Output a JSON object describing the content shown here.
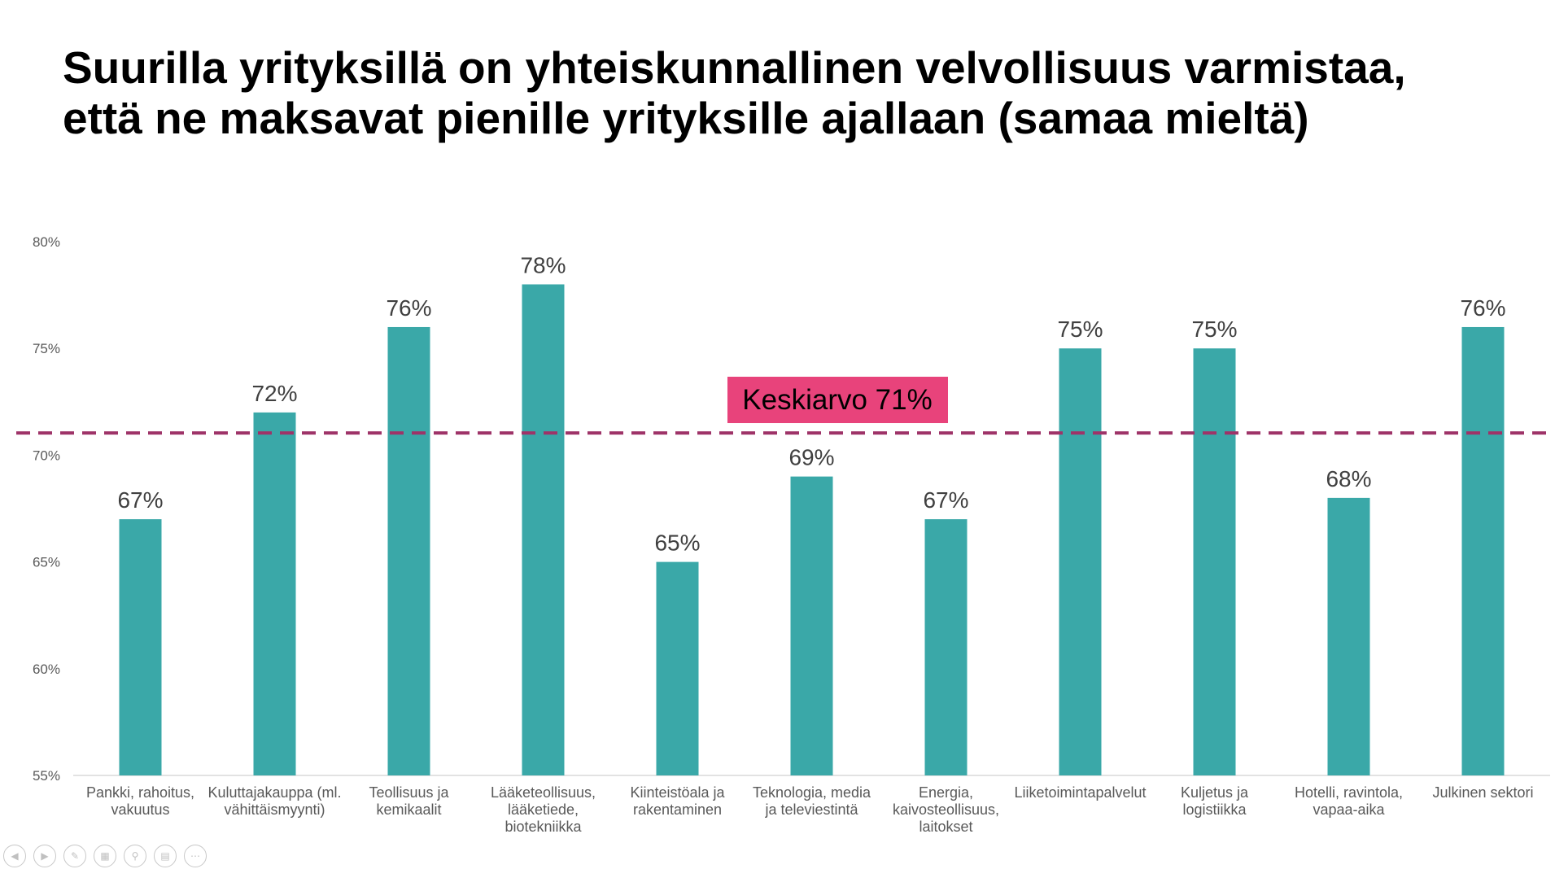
{
  "slide": {
    "title_line1": "Suurilla yrityksillä on yhteiskunnallinen velvollisuus varmistaa,",
    "title_line2": "että ne maksavat pienille yrityksille ajallaan (samaa mieltä)"
  },
  "chart_data": {
    "type": "bar",
    "title": "Suurilla yrityksillä on yhteiskunnallinen velvollisuus varmistaa, että ne maksavat pienille yrityksille ajallaan (samaa mieltä)",
    "categories": [
      [
        "Pankki, rahoitus,",
        "vakuutus"
      ],
      [
        "Kuluttajakauppa (ml.",
        "vähittäismyynti)"
      ],
      [
        "Teollisuus ja",
        "kemikaalit"
      ],
      [
        "Lääketeollisuus,",
        "lääketiede,",
        "biotekniikka"
      ],
      [
        "Kiinteistöala ja",
        "rakentaminen"
      ],
      [
        "Teknologia, media",
        "ja televiestintä"
      ],
      [
        "Energia,",
        "kaivosteollisuus,",
        "laitokset"
      ],
      [
        "Liiketoimintapalvelut"
      ],
      [
        "Kuljetus ja",
        "logistiikka"
      ],
      [
        "Hotelli, ravintola,",
        "vapaa-aika"
      ],
      [
        "Julkinen sektori"
      ]
    ],
    "values": [
      67,
      72,
      76,
      78,
      65,
      69,
      67,
      75,
      75,
      68,
      76
    ],
    "data_labels": [
      "67%",
      "72%",
      "76%",
      "78%",
      "65%",
      "69%",
      "67%",
      "75%",
      "75%",
      "68%",
      "76%"
    ],
    "ylim": [
      55,
      80
    ],
    "yticks": [
      55,
      60,
      65,
      70,
      75,
      80
    ],
    "ytick_labels": [
      "55%",
      "60%",
      "65%",
      "70%",
      "75%",
      "80%"
    ],
    "average": {
      "value": 71,
      "label": "Keskiarvo 71%"
    },
    "bar_color": "#3aa8a8",
    "average_line_color": "#9e3368",
    "average_label_bg": "#e8437b",
    "grid": false,
    "legend": "none"
  },
  "nav_icons": [
    "prev-icon",
    "next-icon",
    "pen-icon",
    "slides-icon",
    "zoom-icon",
    "subtitles-icon",
    "more-icon"
  ]
}
